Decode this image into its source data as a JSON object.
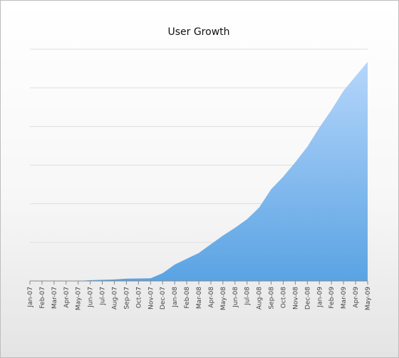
{
  "chart_data": {
    "type": "area",
    "title": "User Growth",
    "xlabel": "",
    "ylabel": "",
    "x": [
      "Jan-07",
      "Feb-07",
      "Mar-07",
      "Apr-07",
      "May-07",
      "Jun-07",
      "Jul-07",
      "Aug-07",
      "Sep-07",
      "Oct-07",
      "Nov-07",
      "Dec-07",
      "Jan-08",
      "Feb-08",
      "Mar-08",
      "Apr-08",
      "May-08",
      "Jun-08",
      "Jul-08",
      "Aug-08",
      "Sep-08",
      "Oct-08",
      "Nov-08",
      "Dec-08",
      "Jan-09",
      "Feb-09",
      "Mar-09",
      "Apr-09",
      "May-09"
    ],
    "series": [
      {
        "values": [
          0,
          0,
          0,
          0,
          0,
          0.4,
          0.6,
          0.8,
          1.2,
          1.3,
          1.4,
          4.0,
          8.5,
          11.5,
          14.5,
          19.0,
          23.5,
          27.5,
          32.0,
          38.0,
          47.5,
          54.0,
          61.5,
          69.5,
          79.5,
          88.5,
          98.5,
          106.0,
          113.5
        ]
      }
    ],
    "ylim": [
      0,
      120
    ],
    "y_ticks_labeled": false,
    "grid": "horizontal",
    "legend": "none",
    "colors": {
      "fill_top": "#b6d6fb",
      "fill_bottom": "#5aa3e3",
      "grid": "#dddddd",
      "axis": "#888888"
    }
  }
}
